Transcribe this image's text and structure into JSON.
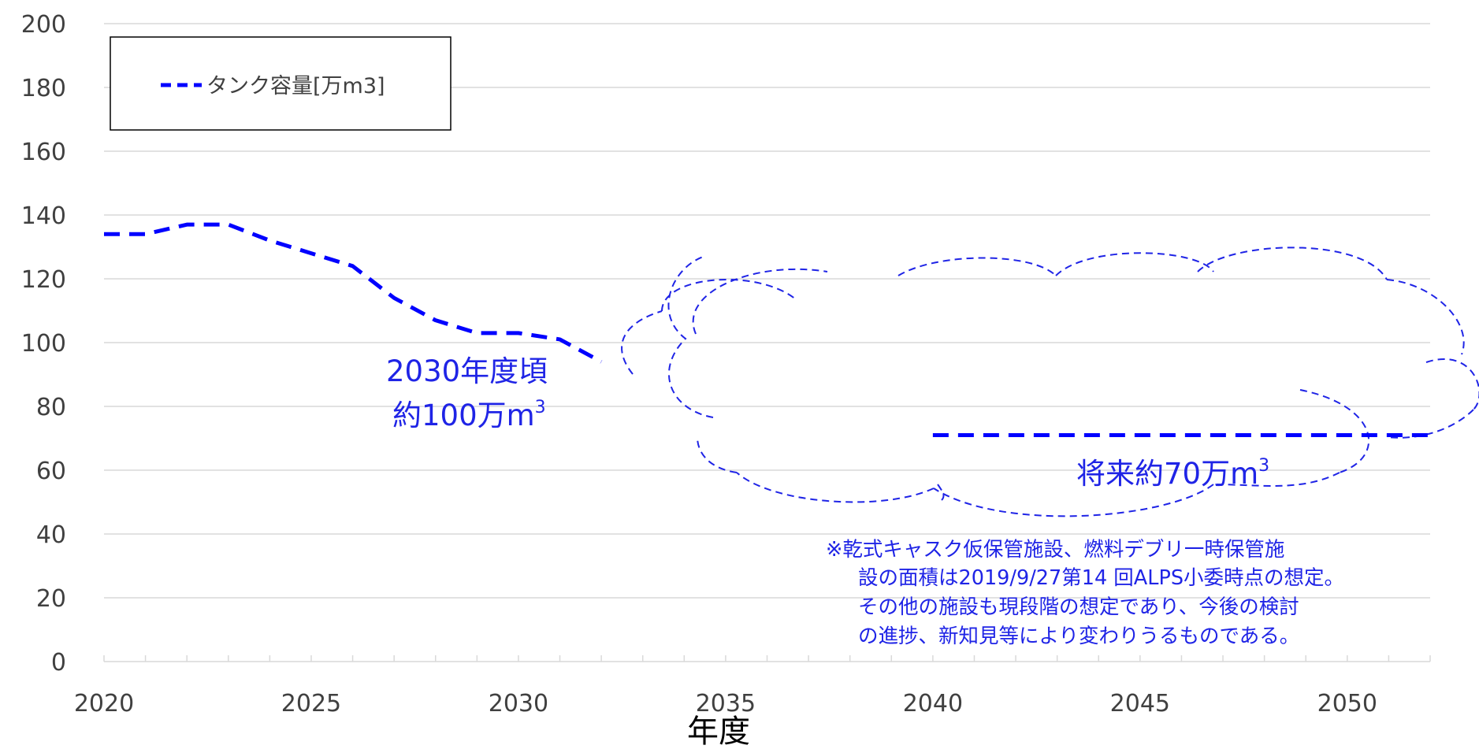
{
  "chart_data": {
    "type": "line",
    "x": [
      2020,
      2021,
      2022,
      2023,
      2024,
      2025,
      2026,
      2027,
      2028,
      2029,
      2030,
      2031,
      2032
    ],
    "series": [
      {
        "name": "タンク容量[万m3]",
        "color": "#0000ff",
        "style": "dashed",
        "values": [
          134,
          134,
          137,
          137,
          132,
          128,
          124,
          114,
          107,
          103,
          103,
          101,
          94
        ]
      },
      {
        "name": "",
        "color": "#0000ff",
        "style": "dashed",
        "x": [
          2040,
          2052
        ],
        "values": [
          71,
          71
        ]
      }
    ],
    "xlabel": "年度",
    "ylabel": "",
    "xlim": [
      2020,
      2052
    ],
    "ylim": [
      0,
      200
    ],
    "xticks": [
      "2020",
      "2025",
      "2030",
      "2035",
      "2040",
      "2045",
      "2050"
    ],
    "yticks": [
      "0",
      "20",
      "40",
      "60",
      "80",
      "100",
      "120",
      "140",
      "160",
      "180",
      "200"
    ],
    "grid": "horizontal",
    "legend_position": "top-left",
    "annotations": {
      "a2030_line1": "2030年度頃",
      "a2030_line2": "約100万m",
      "a2030_sup": "3",
      "future_main": "将来約70万m",
      "future_sup": "3",
      "note_lines": [
        "※乾式キャスク仮保管施設、燃料デブリ一時保管施",
        "設の面積は2019/9/27第14 回ALPS小委時点の想定。",
        "その他の施設も現段階の想定であり、今後の検討",
        "の進捗、新知見等により変わりうるものである。"
      ]
    }
  }
}
